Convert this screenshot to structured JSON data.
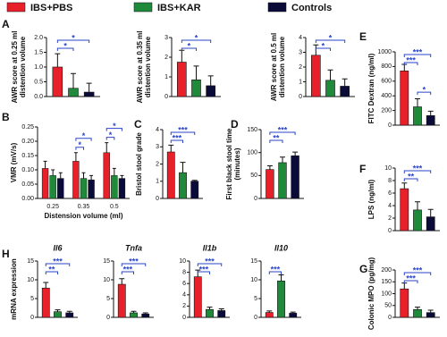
{
  "legend": {
    "series": [
      {
        "name": "IBS+PBS",
        "color": "#e8202a"
      },
      {
        "name": "IBS+KAR",
        "color": "#1e8a3a"
      },
      {
        "name": "Controls",
        "color": "#0b0b3a"
      }
    ]
  },
  "chart_data": [
    {
      "type": "bar",
      "panel": "A",
      "ylabel": [
        "AWR score at 0.25 ml",
        "distention volume"
      ],
      "values": [
        1.0,
        0.28,
        0.15
      ],
      "errors": [
        0.45,
        0.5,
        0.3
      ],
      "ylim": [
        0,
        2
      ],
      "yticks": [
        {
          "value": 0,
          "label": "0.0"
        },
        {
          "value": 0.5,
          "label": "0.5"
        },
        {
          "value": 1,
          "label": "1.0"
        },
        {
          "value": 1.5,
          "label": "1.5"
        },
        {
          "value": 2,
          "label": "2.0"
        }
      ],
      "significance": [
        "*",
        "*"
      ]
    },
    {
      "type": "bar",
      "ylabel": [
        "AWR score at 0.35 ml",
        "distention volume"
      ],
      "values": [
        1.75,
        0.85,
        0.55
      ],
      "errors": [
        0.6,
        0.7,
        0.5
      ],
      "ylim": [
        0,
        3
      ],
      "yticks": [
        0,
        1,
        2,
        3
      ],
      "significance": [
        "*",
        "*"
      ]
    },
    {
      "type": "bar",
      "ylabel": [
        "AWR score at 0.5 ml",
        "distention volume"
      ],
      "values": [
        2.8,
        1.1,
        0.7
      ],
      "errors": [
        0.7,
        0.7,
        0.5
      ],
      "ylim": [
        0,
        4
      ],
      "yticks": [
        0,
        1,
        2,
        3,
        4
      ],
      "significance": [
        "*",
        "*"
      ]
    },
    {
      "type": "bar",
      "panel": "E",
      "ylabel": [
        "FITC Dextran (ng/ml)"
      ],
      "values": [
        740,
        250,
        130
      ],
      "errors": [
        90,
        110,
        60
      ],
      "ylim": [
        0,
        1000
      ],
      "yticks": [
        0,
        200,
        400,
        600,
        800,
        1000
      ],
      "significance": [
        "***",
        "***",
        "*"
      ]
    },
    {
      "type": "grouped_bar",
      "panel": "B",
      "ylabel": [
        "VMR (mV/s)"
      ],
      "xlabel": "Distension volume (ml)",
      "categories": [
        "0.25",
        "0.35",
        "0.5"
      ],
      "series": [
        {
          "values": [
            0.105,
            0.13,
            0.16
          ],
          "errors": [
            0.025,
            0.03,
            0.035
          ]
        },
        {
          "values": [
            0.08,
            0.07,
            0.08
          ],
          "errors": [
            0.02,
            0.02,
            0.025
          ]
        },
        {
          "values": [
            0.07,
            0.065,
            0.07
          ],
          "errors": [
            0.02,
            0.015,
            0.01
          ]
        }
      ],
      "ylim": [
        0,
        0.25
      ],
      "yticks": [
        {
          "value": 0,
          "label": "0.00"
        },
        {
          "value": 0.05,
          "label": "0.05"
        },
        {
          "value": 0.1,
          "label": "0.10"
        },
        {
          "value": 0.15,
          "label": "0.15"
        },
        {
          "value": 0.2,
          "label": "0.20"
        },
        {
          "value": 0.25,
          "label": "0.25"
        }
      ],
      "significance": [
        [],
        [
          "*",
          "*"
        ],
        [
          "*",
          "*"
        ]
      ]
    },
    {
      "type": "bar",
      "panel": "C",
      "ylabel": [
        "Bristol stool grade"
      ],
      "values": [
        2.7,
        1.5,
        1.0
      ],
      "errors": [
        0.4,
        0.6,
        0.05
      ],
      "ylim": [
        0,
        4
      ],
      "yticks": [
        0,
        1,
        2,
        3,
        4
      ],
      "significance": [
        "***",
        "***"
      ]
    },
    {
      "type": "bar",
      "panel": "D",
      "ylabel": [
        "First black stool time",
        "(minutes)"
      ],
      "values": [
        63,
        78,
        93
      ],
      "errors": [
        8,
        12,
        8
      ],
      "ylim": [
        0,
        150
      ],
      "yticks": [
        0,
        50,
        100,
        150
      ],
      "significance": [
        "**",
        "***"
      ]
    },
    {
      "type": "bar",
      "panel": "F",
      "ylabel": [
        "LPS (ng/ml)"
      ],
      "values": [
        6.7,
        3.3,
        2.2
      ],
      "errors": [
        0.9,
        1.3,
        1.2
      ],
      "ylim": [
        0,
        10
      ],
      "yticks": [
        0,
        2,
        4,
        6,
        8,
        10
      ],
      "significance": [
        "**",
        "***"
      ]
    },
    {
      "type": "bar",
      "panel": "G",
      "ylabel": [
        "Colonic MPO (pg/mg)"
      ],
      "values": [
        120,
        33,
        20
      ],
      "errors": [
        25,
        10,
        10
      ],
      "ylim": [
        0,
        200
      ],
      "yticks": [
        0,
        50,
        100,
        150,
        200
      ],
      "significance": [
        "***",
        "***"
      ]
    },
    {
      "type": "bar",
      "panel": "H",
      "title": "Il6",
      "ylabel": [
        "mRNA expression"
      ],
      "values": [
        7.8,
        1.5,
        1.2
      ],
      "errors": [
        1.5,
        0.5,
        0.4
      ],
      "ylim": [
        0,
        15
      ],
      "yticks": [
        0,
        5,
        10,
        15
      ],
      "significance": [
        "**",
        "***"
      ]
    },
    {
      "type": "bar",
      "title": "Tnfa",
      "values": [
        8.8,
        1.2,
        0.9
      ],
      "errors": [
        1.5,
        0.4,
        0.3
      ],
      "ylim": [
        0,
        15
      ],
      "yticks": [
        0,
        5,
        10,
        15
      ],
      "significance": [
        "***",
        "***"
      ]
    },
    {
      "type": "bar",
      "title": "Il1b",
      "values": [
        7.2,
        1.4,
        1.2
      ],
      "errors": [
        1.2,
        0.4,
        0.3
      ],
      "ylim": [
        0,
        10
      ],
      "yticks": [
        0,
        2,
        4,
        6,
        8,
        10
      ],
      "significance": [
        "***",
        "***"
      ]
    },
    {
      "type": "bar",
      "title": "Il10",
      "values": [
        1.3,
        9.7,
        1.1
      ],
      "errors": [
        0.4,
        1.6,
        0.3
      ],
      "ylim": [
        0,
        15
      ],
      "yticks": [
        0,
        5,
        10,
        15
      ],
      "significance": [
        "***"
      ]
    }
  ]
}
